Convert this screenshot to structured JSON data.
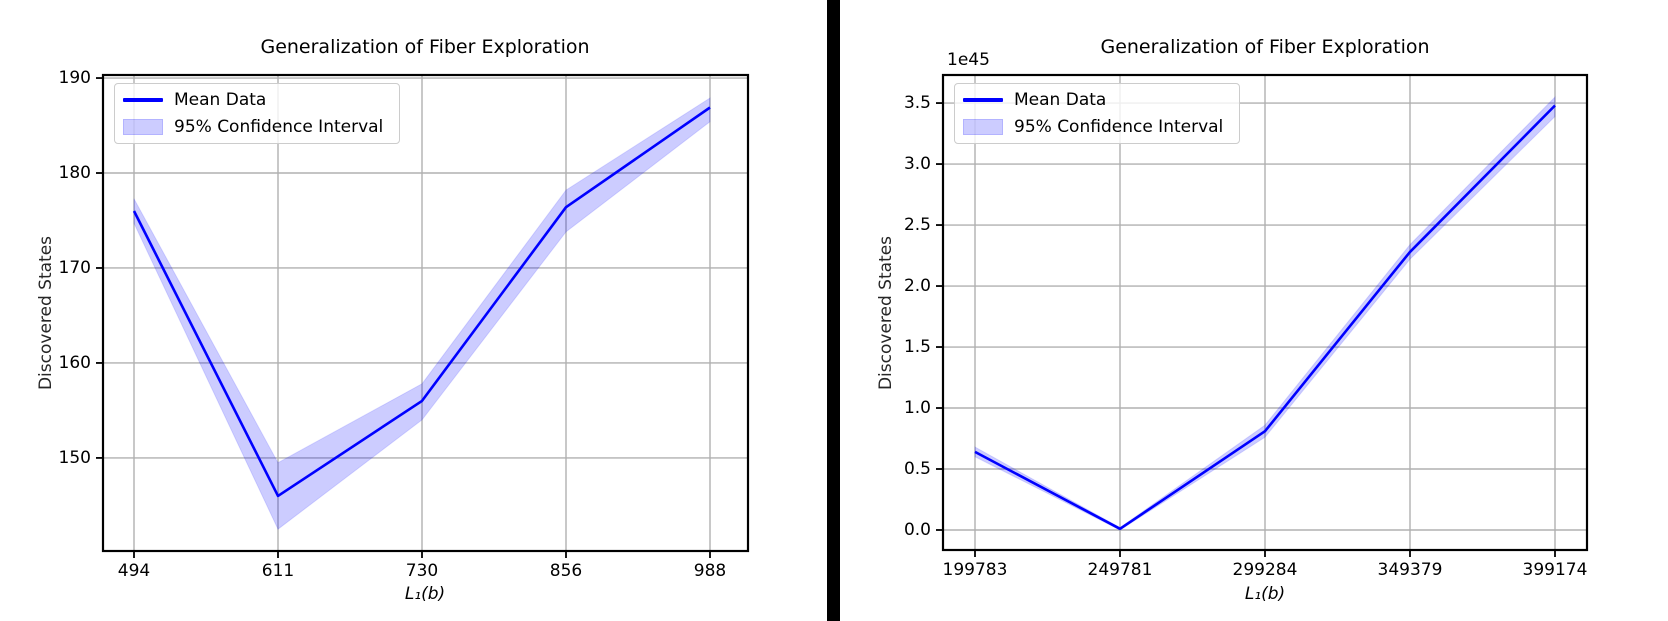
{
  "page": {
    "background": "#ffffff",
    "divider_color": "#000000"
  },
  "chart_data": [
    {
      "type": "line",
      "title": "Generalization of Fiber Exploration",
      "xlabel": "L₁(b)",
      "ylabel": "Discovered States",
      "legend": [
        "Mean Data",
        "95% Confidence Interval"
      ],
      "legend_position": "upper left",
      "grid": true,
      "categories": [
        "494",
        "611",
        "730",
        "856",
        "988"
      ],
      "series": [
        {
          "name": "Mean Data",
          "values": [
            176.0,
            146.0,
            156.0,
            176.4,
            186.9
          ]
        },
        {
          "name": "95% CI lower bound",
          "values": [
            174.7,
            142.5,
            154.0,
            173.8,
            185.4
          ]
        },
        {
          "name": "95% CI upper bound",
          "values": [
            177.3,
            149.5,
            157.8,
            178.2,
            187.9
          ]
        }
      ],
      "ytick_labels": [
        "150",
        "160",
        "170",
        "180",
        "190"
      ],
      "ytick_values": [
        150,
        160,
        170,
        180,
        190
      ],
      "ylim": [
        140.2,
        190.32
      ],
      "y_offset_label": "",
      "y_unit_multiplier": 1,
      "colors": {
        "line": "#0000ff",
        "band": "#0000ff",
        "band_rgba": "rgba(0,0,255,0.2)",
        "band_edge_rgba": "rgba(0,0,255,0.12)",
        "grid": "#b0b0b0",
        "spine": "#000000"
      }
    },
    {
      "type": "line",
      "title": "Generalization of Fiber Exploration",
      "xlabel": "L₁(b)",
      "ylabel": "Discovered States",
      "legend": [
        "Mean Data",
        "95% Confidence Interval"
      ],
      "legend_position": "upper left",
      "grid": true,
      "categories": [
        "199783",
        "249781",
        "299284",
        "349379",
        "399174"
      ],
      "series": [
        {
          "name": "Mean Data",
          "values": [
            0.64,
            0.01,
            0.81,
            2.28,
            3.48
          ]
        },
        {
          "name": "95% CI lower bound",
          "values": [
            0.6,
            0.0,
            0.76,
            2.22,
            3.39
          ]
        },
        {
          "name": "95% CI upper bound",
          "values": [
            0.68,
            0.02,
            0.86,
            2.34,
            3.55
          ]
        }
      ],
      "ytick_labels": [
        "0.0",
        "0.5",
        "1.0",
        "1.5",
        "2.0",
        "2.5",
        "3.0",
        "3.5"
      ],
      "ytick_values": [
        0.0,
        0.5,
        1.0,
        1.5,
        2.0,
        2.5,
        3.0,
        3.5
      ],
      "ylim": [
        -0.164,
        3.73
      ],
      "y_offset_label": "1e45",
      "y_unit_multiplier": 1e+45,
      "colors": {
        "line": "#0000ff",
        "band": "#0000ff",
        "band_rgba": "rgba(0,0,255,0.2)",
        "band_edge_rgba": "rgba(0,0,255,0.12)",
        "grid": "#b0b0b0",
        "spine": "#000000"
      }
    }
  ]
}
